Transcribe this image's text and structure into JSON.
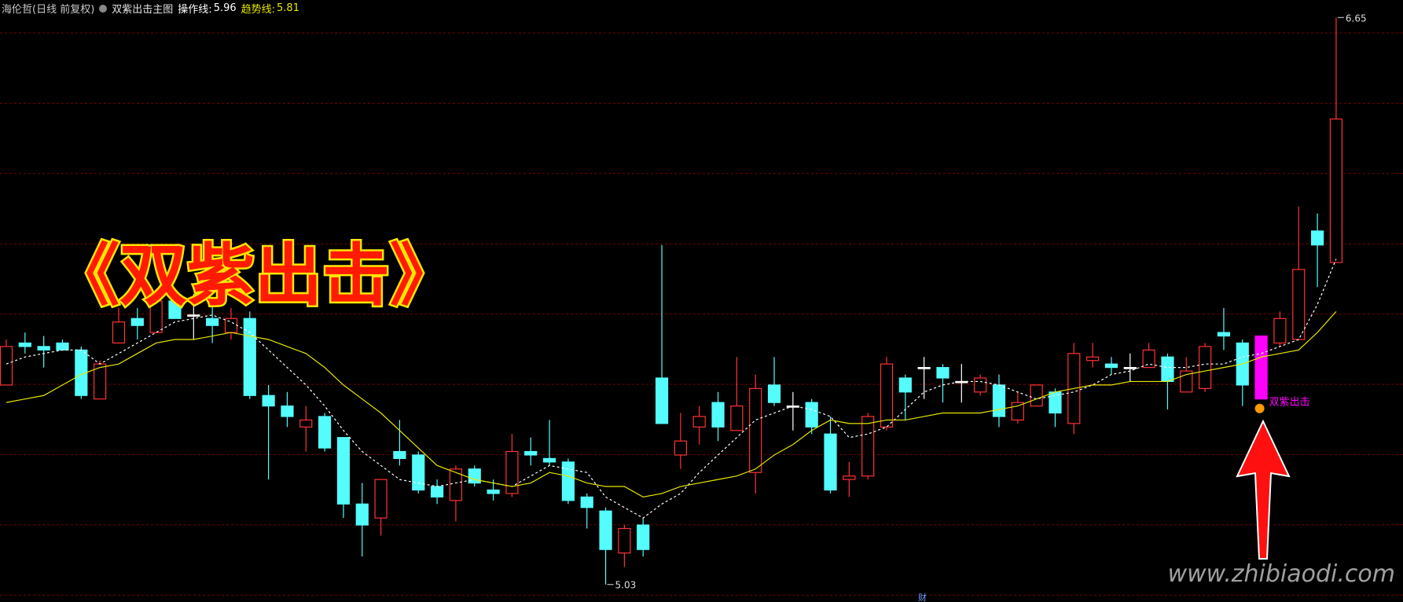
{
  "header": {
    "title": "海伦哲(日线 前复权)",
    "indicator": "双紫出击主图"
  },
  "chart_data": {
    "type": "candlestick",
    "banner": "《双紫出击》",
    "watermark": "www.zhibiaodi.com",
    "marker": "财",
    "ylim": [
      4.98,
      6.7
    ],
    "up_color": "#ff3232",
    "down_color": "#54fcfc",
    "doji_color": "#ffffff",
    "highlight": {
      "index": 67,
      "color": "#ff00ff",
      "label": "双紫出击"
    },
    "open": [
      5.6,
      5.72,
      5.71,
      5.72,
      5.7,
      5.56,
      5.72,
      5.79,
      5.75,
      5.84,
      5.8,
      5.79,
      5.75,
      5.79,
      5.57,
      5.54,
      5.48,
      5.51,
      5.45,
      5.26,
      5.22,
      5.41,
      5.4,
      5.31,
      5.27,
      5.36,
      5.3,
      5.29,
      5.41,
      5.39,
      5.38,
      5.28,
      5.24,
      5.12,
      5.2,
      5.62,
      5.4,
      5.48,
      5.55,
      5.47,
      5.35,
      5.6,
      5.54,
      5.55,
      5.46,
      5.33,
      5.34,
      5.48,
      5.62,
      5.65,
      5.65,
      5.61,
      5.58,
      5.6,
      5.5,
      5.54,
      5.58,
      5.49,
      5.67,
      5.66,
      5.65,
      5.65,
      5.68,
      5.58,
      5.59,
      5.75,
      5.72,
      5.56,
      5.72,
      5.73,
      6.04,
      5.95
    ],
    "high": [
      5.73,
      5.75,
      5.74,
      5.73,
      5.71,
      5.67,
      5.82,
      5.82,
      5.86,
      5.87,
      5.86,
      5.83,
      5.82,
      5.81,
      5.6,
      5.58,
      5.54,
      5.52,
      5.45,
      5.32,
      5.33,
      5.5,
      5.41,
      5.33,
      5.37,
      5.37,
      5.33,
      5.46,
      5.45,
      5.5,
      5.39,
      5.29,
      5.25,
      5.2,
      5.22,
      6.0,
      5.52,
      5.54,
      5.58,
      5.68,
      5.63,
      5.68,
      5.58,
      5.56,
      5.51,
      5.38,
      5.52,
      5.68,
      5.63,
      5.68,
      5.66,
      5.66,
      5.63,
      5.63,
      5.58,
      5.6,
      5.59,
      5.72,
      5.72,
      5.68,
      5.69,
      5.72,
      5.69,
      5.68,
      5.72,
      5.82,
      5.73,
      5.74,
      5.81,
      6.11,
      6.09,
      6.65
    ],
    "low": [
      5.6,
      5.69,
      5.65,
      5.7,
      5.56,
      5.56,
      5.72,
      5.73,
      5.75,
      5.79,
      5.73,
      5.72,
      5.73,
      5.56,
      5.33,
      5.48,
      5.41,
      5.41,
      5.22,
      5.11,
      5.17,
      5.37,
      5.29,
      5.26,
      5.21,
      5.31,
      5.27,
      5.28,
      5.37,
      5.37,
      5.26,
      5.19,
      5.03,
      5.08,
      5.11,
      5.49,
      5.36,
      5.43,
      5.44,
      5.47,
      5.29,
      5.54,
      5.47,
      5.46,
      5.29,
      5.28,
      5.33,
      5.47,
      5.5,
      5.56,
      5.55,
      5.55,
      5.57,
      5.48,
      5.49,
      5.54,
      5.48,
      5.46,
      5.65,
      5.63,
      5.61,
      5.65,
      5.53,
      5.58,
      5.58,
      5.7,
      5.54,
      5.56,
      5.71,
      5.73,
      5.88,
      5.95
    ],
    "close": [
      5.71,
      5.71,
      5.7,
      5.7,
      5.57,
      5.66,
      5.78,
      5.77,
      5.84,
      5.79,
      5.8,
      5.77,
      5.79,
      5.57,
      5.54,
      5.51,
      5.5,
      5.42,
      5.26,
      5.2,
      5.33,
      5.39,
      5.3,
      5.28,
      5.36,
      5.32,
      5.29,
      5.41,
      5.4,
      5.38,
      5.27,
      5.25,
      5.13,
      5.19,
      5.13,
      5.49,
      5.44,
      5.51,
      5.48,
      5.54,
      5.59,
      5.55,
      5.54,
      5.48,
      5.3,
      5.34,
      5.51,
      5.66,
      5.58,
      5.65,
      5.62,
      5.61,
      5.62,
      5.51,
      5.55,
      5.6,
      5.52,
      5.69,
      5.68,
      5.65,
      5.65,
      5.7,
      5.61,
      5.64,
      5.71,
      5.74,
      5.6,
      5.74,
      5.79,
      5.93,
      6.0,
      6.36
    ],
    "series": [
      {
        "name": "操作线:",
        "color": "#ffffff",
        "dashed": true,
        "values": [
          5.66,
          5.68,
          5.69,
          5.7,
          5.7,
          5.66,
          5.69,
          5.72,
          5.75,
          5.78,
          5.79,
          5.8,
          5.78,
          5.75,
          5.7,
          5.65,
          5.6,
          5.54,
          5.47,
          5.41,
          5.37,
          5.33,
          5.32,
          5.31,
          5.32,
          5.33,
          5.32,
          5.31,
          5.34,
          5.37,
          5.36,
          5.35,
          5.28,
          5.25,
          5.22,
          5.26,
          5.29,
          5.35,
          5.4,
          5.45,
          5.5,
          5.52,
          5.54,
          5.53,
          5.51,
          5.45,
          5.46,
          5.48,
          5.53,
          5.58,
          5.6,
          5.61,
          5.61,
          5.6,
          5.58,
          5.56,
          5.57,
          5.58,
          5.6,
          5.63,
          5.64,
          5.66,
          5.65,
          5.65,
          5.66,
          5.66,
          5.68,
          5.69,
          5.71,
          5.73,
          5.83,
          5.96
        ]
      },
      {
        "name": "趋势线:",
        "color": "#e6e600",
        "dashed": false,
        "values": [
          5.55,
          5.56,
          5.57,
          5.6,
          5.63,
          5.65,
          5.66,
          5.69,
          5.72,
          5.73,
          5.73,
          5.74,
          5.75,
          5.74,
          5.73,
          5.71,
          5.69,
          5.65,
          5.6,
          5.56,
          5.52,
          5.47,
          5.42,
          5.37,
          5.35,
          5.33,
          5.32,
          5.31,
          5.32,
          5.35,
          5.34,
          5.32,
          5.31,
          5.31,
          5.28,
          5.29,
          5.31,
          5.32,
          5.33,
          5.34,
          5.36,
          5.4,
          5.43,
          5.47,
          5.5,
          5.49,
          5.49,
          5.5,
          5.5,
          5.51,
          5.52,
          5.52,
          5.52,
          5.53,
          5.54,
          5.56,
          5.58,
          5.59,
          5.6,
          5.6,
          5.61,
          5.61,
          5.61,
          5.63,
          5.64,
          5.65,
          5.66,
          5.68,
          5.69,
          5.7,
          5.75,
          5.81
        ]
      }
    ]
  }
}
